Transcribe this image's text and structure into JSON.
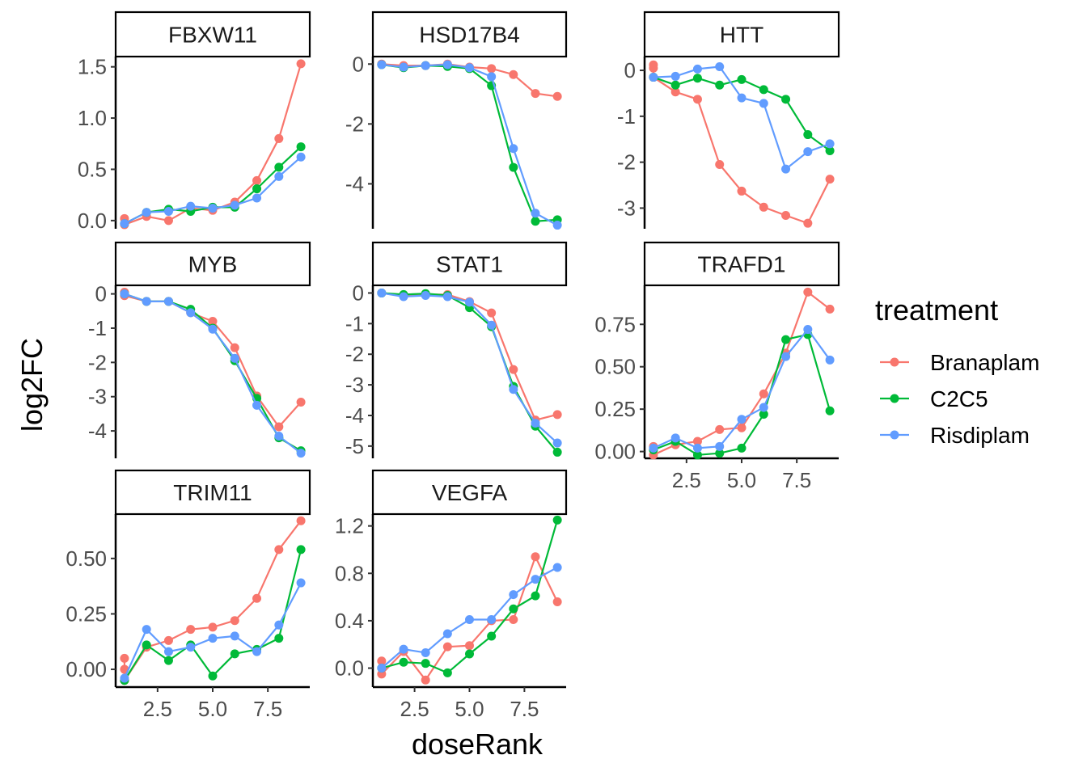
{
  "chart_data": {
    "type": "line",
    "title": "",
    "xlabel": "doseRank",
    "ylabel": "log2FC",
    "legend": {
      "title": "treatment",
      "position": "right",
      "entries": [
        {
          "name": "Branaplam",
          "color": "#F8766D"
        },
        {
          "name": "C2C5",
          "color": "#00BA38"
        },
        {
          "name": "Risdiplam",
          "color": "#619CFF"
        }
      ]
    },
    "x_ticks": [
      "2.5",
      "5.0",
      "7.5"
    ],
    "x_tick_values": [
      2.5,
      5.0,
      7.5
    ],
    "xlim": [
      0.6,
      9.4
    ],
    "grid": false,
    "facets": [
      {
        "name": "FBXW11",
        "ylim": [
          -0.08,
          1.6
        ],
        "y_ticks": [
          0.0,
          0.5,
          1.0,
          1.5
        ],
        "y_tick_labels": [
          "0.0",
          "0.5",
          "1.0",
          "1.5"
        ],
        "series": [
          {
            "name": "Branaplam",
            "x": [
              1,
              1,
              2,
              3,
              4,
              5,
              6,
              7,
              8,
              9
            ],
            "y": [
              0.02,
              -0.04,
              0.04,
              0.0,
              0.12,
              0.1,
              0.18,
              0.39,
              0.8,
              1.53
            ]
          },
          {
            "name": "C2C5",
            "x": [
              1,
              2,
              3,
              4,
              5,
              6,
              7,
              8,
              9
            ],
            "y": [
              -0.03,
              0.08,
              0.11,
              0.09,
              0.13,
              0.13,
              0.31,
              0.52,
              0.72
            ]
          },
          {
            "name": "Risdiplam",
            "x": [
              1,
              2,
              3,
              4,
              5,
              6,
              7,
              8,
              9
            ],
            "y": [
              -0.03,
              0.08,
              0.09,
              0.14,
              0.12,
              0.15,
              0.22,
              0.43,
              0.62
            ]
          }
        ]
      },
      {
        "name": "HSD17B4",
        "ylim": [
          -5.5,
          0.25
        ],
        "y_ticks": [
          0,
          -2,
          -4
        ],
        "y_tick_labels": [
          "0",
          "-2",
          "-4"
        ],
        "series": [
          {
            "name": "Branaplam",
            "x": [
              1,
              2,
              3,
              4,
              5,
              6,
              7,
              8,
              9
            ],
            "y": [
              0.0,
              -0.05,
              -0.05,
              0.0,
              -0.1,
              -0.15,
              -0.35,
              -0.98,
              -1.08
            ]
          },
          {
            "name": "C2C5",
            "x": [
              1,
              2,
              3,
              4,
              5,
              6,
              7,
              8,
              9
            ],
            "y": [
              -0.02,
              -0.12,
              -0.05,
              -0.08,
              -0.15,
              -0.72,
              -3.45,
              -5.25,
              -5.2
            ]
          },
          {
            "name": "Risdiplam",
            "x": [
              1,
              2,
              3,
              4,
              5,
              6,
              7,
              8,
              9
            ],
            "y": [
              -0.02,
              -0.1,
              -0.05,
              -0.02,
              -0.12,
              -0.42,
              -2.82,
              -4.98,
              -5.38
            ]
          }
        ]
      },
      {
        "name": "HTT",
        "ylim": [
          -3.45,
          0.3
        ],
        "y_ticks": [
          0,
          -1,
          -2,
          -3
        ],
        "y_tick_labels": [
          "0",
          "-1",
          "-2",
          "-3"
        ],
        "series": [
          {
            "name": "Branaplam",
            "x": [
              1,
              1,
              1,
              2,
              3,
              4,
              5,
              6,
              7,
              8,
              9
            ],
            "y": [
              0.12,
              0.05,
              -0.15,
              -0.47,
              -0.63,
              -2.05,
              -2.63,
              -2.98,
              -3.16,
              -3.33,
              -2.37
            ]
          },
          {
            "name": "C2C5",
            "x": [
              1,
              2,
              3,
              4,
              5,
              6,
              7,
              8,
              9
            ],
            "y": [
              -0.15,
              -0.32,
              -0.17,
              -0.32,
              -0.2,
              -0.42,
              -0.63,
              -1.4,
              -1.75
            ]
          },
          {
            "name": "Risdiplam",
            "x": [
              1,
              2,
              3,
              4,
              5,
              6,
              7,
              8,
              9
            ],
            "y": [
              -0.15,
              -0.13,
              0.03,
              0.08,
              -0.6,
              -0.72,
              -2.15,
              -1.77,
              -1.6
            ]
          }
        ]
      },
      {
        "name": "MYB",
        "ylim": [
          -4.8,
          0.25
        ],
        "y_ticks": [
          0,
          -1,
          -2,
          -3,
          -4
        ],
        "y_tick_labels": [
          "0",
          "-1",
          "-2",
          "-3",
          "-4"
        ],
        "series": [
          {
            "name": "Branaplam",
            "x": [
              1,
              1,
              2,
              3,
              4,
              5,
              6,
              7,
              8,
              9
            ],
            "y": [
              0.05,
              -0.05,
              -0.22,
              -0.22,
              -0.55,
              -0.8,
              -1.57,
              -2.98,
              -3.88,
              -3.16
            ]
          },
          {
            "name": "C2C5",
            "x": [
              1,
              2,
              3,
              4,
              5,
              6,
              7,
              8,
              9
            ],
            "y": [
              0.0,
              -0.22,
              -0.22,
              -0.45,
              -1.0,
              -1.95,
              -3.05,
              -4.2,
              -4.58
            ]
          },
          {
            "name": "Risdiplam",
            "x": [
              1,
              2,
              3,
              4,
              5,
              6,
              7,
              8,
              9
            ],
            "y": [
              0.0,
              -0.22,
              -0.22,
              -0.55,
              -1.03,
              -1.88,
              -3.25,
              -4.15,
              -4.65
            ]
          }
        ]
      },
      {
        "name": "STAT1",
        "ylim": [
          -5.4,
          0.25
        ],
        "y_ticks": [
          0,
          -1,
          -2,
          -3,
          -4,
          -5
        ],
        "y_tick_labels": [
          "0",
          "-1",
          "-2",
          "-3",
          "-4",
          "-5"
        ],
        "series": [
          {
            "name": "Branaplam",
            "x": [
              1,
              2,
              3,
              4,
              5,
              6,
              7,
              8,
              9
            ],
            "y": [
              0.0,
              -0.08,
              -0.05,
              -0.05,
              -0.28,
              -0.65,
              -2.5,
              -4.15,
              -3.97
            ]
          },
          {
            "name": "C2C5",
            "x": [
              1,
              2,
              3,
              4,
              5,
              6,
              7,
              8,
              9
            ],
            "y": [
              0.0,
              -0.05,
              -0.02,
              -0.08,
              -0.48,
              -1.1,
              -3.05,
              -4.35,
              -5.2
            ]
          },
          {
            "name": "Risdiplam",
            "x": [
              1,
              2,
              3,
              4,
              5,
              6,
              7,
              8,
              9
            ],
            "y": [
              0.0,
              -0.12,
              -0.08,
              -0.12,
              -0.3,
              -1.05,
              -3.15,
              -4.25,
              -4.9
            ]
          }
        ]
      },
      {
        "name": "TRAFD1",
        "ylim": [
          -0.04,
          0.98
        ],
        "y_ticks": [
          0.0,
          0.25,
          0.5,
          0.75
        ],
        "y_tick_labels": [
          "0.00",
          "0.25",
          "0.50",
          "0.75"
        ],
        "series": [
          {
            "name": "Branaplam",
            "x": [
              1,
              1,
              2,
              3,
              4,
              5,
              6,
              7,
              8,
              9
            ],
            "y": [
              0.03,
              -0.02,
              0.04,
              0.06,
              0.13,
              0.14,
              0.34,
              0.58,
              0.94,
              0.84
            ]
          },
          {
            "name": "C2C5",
            "x": [
              1,
              2,
              3,
              4,
              5,
              6,
              7,
              8,
              9
            ],
            "y": [
              0.01,
              0.06,
              -0.02,
              -0.01,
              0.02,
              0.22,
              0.66,
              0.69,
              0.24
            ]
          },
          {
            "name": "Risdiplam",
            "x": [
              1,
              2,
              3,
              4,
              5,
              6,
              7,
              8,
              9
            ],
            "y": [
              0.02,
              0.08,
              0.02,
              0.03,
              0.19,
              0.26,
              0.56,
              0.72,
              0.54
            ]
          }
        ]
      },
      {
        "name": "TRIM11",
        "ylim": [
          -0.08,
          0.7
        ],
        "y_ticks": [
          0.0,
          0.25,
          0.5
        ],
        "y_tick_labels": [
          "0.00",
          "0.25",
          "0.50"
        ],
        "series": [
          {
            "name": "Branaplam",
            "x": [
              1,
              1,
              1,
              2,
              3,
              4,
              5,
              6,
              7,
              8,
              9
            ],
            "y": [
              0.05,
              0.0,
              -0.05,
              0.1,
              0.13,
              0.18,
              0.19,
              0.22,
              0.32,
              0.54,
              0.67
            ]
          },
          {
            "name": "C2C5",
            "x": [
              1,
              2,
              3,
              4,
              5,
              6,
              7,
              8,
              9
            ],
            "y": [
              -0.05,
              0.11,
              0.04,
              0.11,
              -0.03,
              0.07,
              0.09,
              0.14,
              0.54
            ]
          },
          {
            "name": "Risdiplam",
            "x": [
              1,
              2,
              3,
              4,
              5,
              6,
              7,
              8,
              9
            ],
            "y": [
              -0.04,
              0.18,
              0.08,
              0.1,
              0.14,
              0.15,
              0.08,
              0.2,
              0.39
            ]
          }
        ]
      },
      {
        "name": "VEGFA",
        "ylim": [
          -0.16,
          1.3
        ],
        "y_ticks": [
          0.0,
          0.4,
          0.8,
          1.2
        ],
        "y_tick_labels": [
          "0.0",
          "0.4",
          "0.8",
          "1.2"
        ],
        "series": [
          {
            "name": "Branaplam",
            "x": [
              1,
              1,
              2,
              3,
              4,
              5,
              6,
              7,
              8,
              9
            ],
            "y": [
              0.06,
              -0.05,
              0.14,
              -0.1,
              0.18,
              0.19,
              0.4,
              0.41,
              0.94,
              0.56
            ]
          },
          {
            "name": "C2C5",
            "x": [
              1,
              2,
              3,
              4,
              5,
              6,
              7,
              8,
              9
            ],
            "y": [
              0.0,
              0.05,
              0.04,
              -0.04,
              0.12,
              0.27,
              0.5,
              0.61,
              1.25
            ]
          },
          {
            "name": "Risdiplam",
            "x": [
              1,
              2,
              3,
              4,
              5,
              6,
              7,
              8,
              9
            ],
            "y": [
              0.0,
              0.16,
              0.13,
              0.29,
              0.41,
              0.41,
              0.62,
              0.75,
              0.85
            ]
          }
        ]
      }
    ]
  }
}
